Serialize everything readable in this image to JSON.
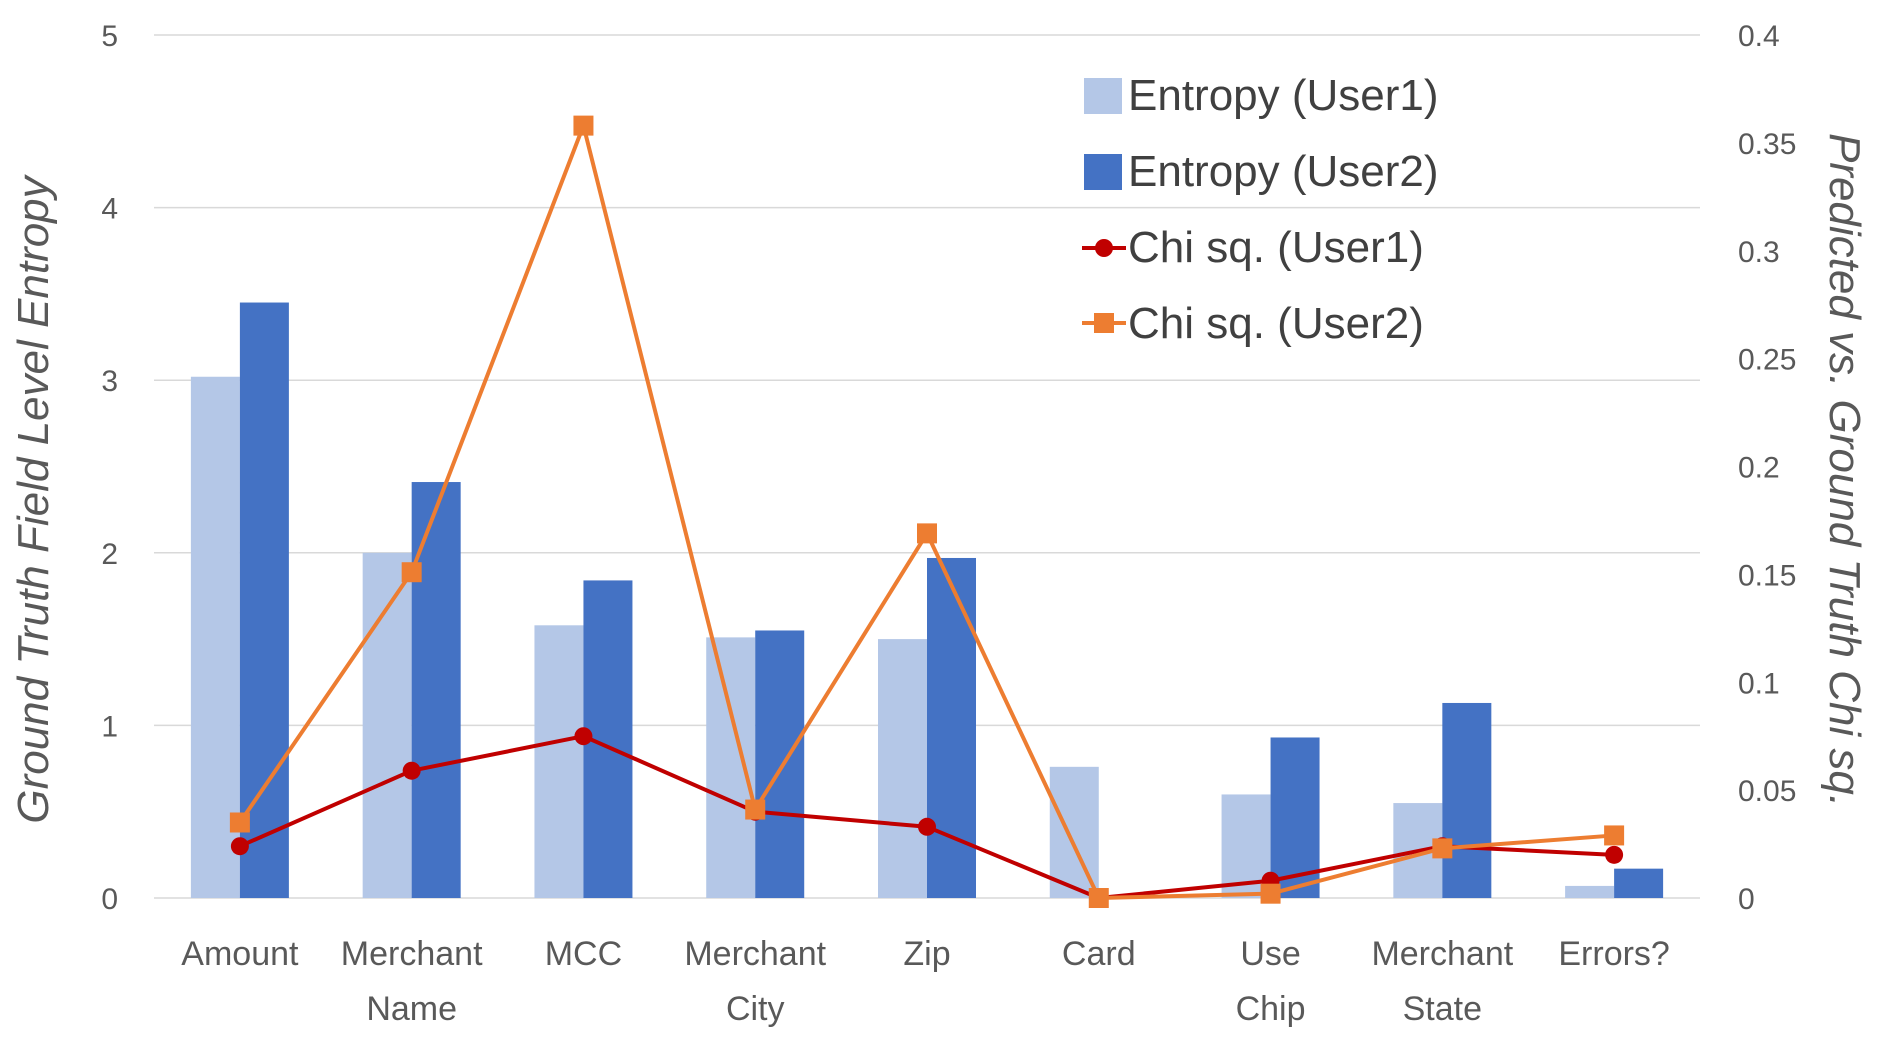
{
  "chart_data": {
    "type": "bar+line",
    "categories": [
      [
        "Amount"
      ],
      [
        "Merchant",
        "Name"
      ],
      [
        "MCC"
      ],
      [
        "Merchant",
        "City"
      ],
      [
        "Zip"
      ],
      [
        "Card"
      ],
      [
        "Use",
        "Chip"
      ],
      [
        "Merchant",
        "State"
      ],
      [
        "Errors?"
      ]
    ],
    "y_left": {
      "label": "Ground Truth Field Level Entropy",
      "range": [
        0,
        5
      ],
      "ticks": [
        0,
        1,
        2,
        3,
        4,
        5
      ],
      "tick_labels": [
        "0",
        "1",
        "2",
        "3",
        "4",
        "5"
      ]
    },
    "y_right": {
      "label": "Predicted vs. Ground Truth Chi sq.",
      "range": [
        0,
        0.4
      ],
      "ticks": [
        0,
        0.05,
        0.1,
        0.15,
        0.2,
        0.25,
        0.3,
        0.35,
        0.4
      ],
      "tick_labels": [
        "0",
        "0.05",
        "0.1",
        "0.15",
        "0.2",
        "0.25",
        "0.3",
        "0.35",
        "0.4"
      ]
    },
    "bar_series": [
      {
        "name": "Entropy (User1)",
        "color": "#b4c7e7",
        "values": [
          3.02,
          2.0,
          1.58,
          1.51,
          1.5,
          0.76,
          0.6,
          0.55,
          0.07
        ]
      },
      {
        "name": "Entropy (User2)",
        "color": "#4472c4",
        "values": [
          3.45,
          2.41,
          1.84,
          1.55,
          1.97,
          0.0,
          0.93,
          1.13,
          0.17
        ]
      }
    ],
    "line_series": [
      {
        "name": "Chi sq. (User1)",
        "color": "#c00000",
        "marker": "circle",
        "values": [
          0.024,
          0.059,
          0.075,
          0.04,
          0.033,
          0.0,
          0.008,
          0.024,
          0.02
        ]
      },
      {
        "name": "Chi sq. (User2)",
        "color": "#ed7d31",
        "marker": "square",
        "values": [
          0.035,
          0.151,
          0.358,
          0.041,
          0.169,
          0.0,
          0.002,
          0.023,
          0.029
        ]
      }
    ],
    "grid": true,
    "legend_position": "top-right"
  }
}
